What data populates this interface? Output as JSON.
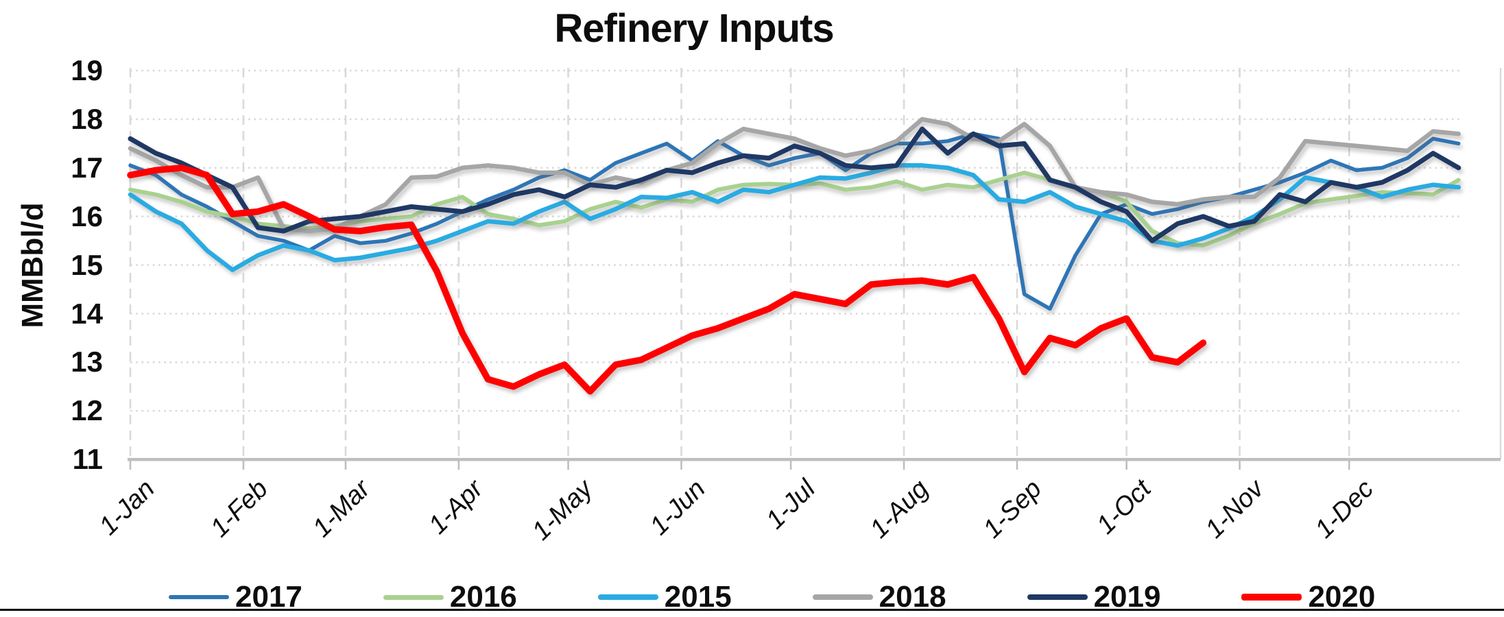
{
  "title": "Refinery Inputs",
  "y_axis": {
    "label": "MMBbl/d",
    "ticks": [
      19,
      18,
      17,
      16,
      15,
      14,
      13,
      12,
      11
    ]
  },
  "x_axis": {
    "month_labels": [
      "1-Jan",
      "1-Feb",
      "1-Mar",
      "1-Apr",
      "1-May",
      "1-Jun",
      "1-Jul",
      "1-Aug",
      "1-Sep",
      "1-Oct",
      "1-Nov",
      "1-Dec"
    ]
  },
  "colors": {
    "grid": "#d9d9d9",
    "axis": "#bfbfbf",
    "text": "#0d0d0d",
    "s2017": "#2e75b6",
    "s2016": "#a9d18e",
    "s2015": "#29abe2",
    "s2018": "#a6a6a6",
    "s2019": "#1f3864",
    "s2020": "#ff0000"
  },
  "chart_data": {
    "type": "line",
    "title": "Refinery Inputs",
    "xlabel": "",
    "ylabel": "MMBbl/d",
    "ylim": [
      11,
      19
    ],
    "grid": "horizontal dotted + vertical dashed",
    "legend_position": "bottom",
    "x": [
      "Jan 1",
      "Jan 8",
      "Jan 15",
      "Jan 22",
      "Jan 29",
      "Feb 5",
      "Feb 12",
      "Feb 19",
      "Feb 26",
      "Mar 5",
      "Mar 12",
      "Mar 19",
      "Mar 26",
      "Apr 2",
      "Apr 9",
      "Apr 16",
      "Apr 23",
      "Apr 30",
      "May 7",
      "May 14",
      "May 21",
      "May 28",
      "Jun 4",
      "Jun 11",
      "Jun 18",
      "Jun 25",
      "Jul 2",
      "Jul 9",
      "Jul 16",
      "Jul 23",
      "Jul 30",
      "Aug 6",
      "Aug 13",
      "Aug 20",
      "Aug 27",
      "Sep 3",
      "Sep 10",
      "Sep 17",
      "Sep 24",
      "Oct 1",
      "Oct 8",
      "Oct 15",
      "Oct 22",
      "Oct 29",
      "Nov 5",
      "Nov 12",
      "Nov 19",
      "Nov 26",
      "Dec 3",
      "Dec 10",
      "Dec 17",
      "Dec 24",
      "Dec 31"
    ],
    "series": [
      {
        "name": "2017",
        "color": "#2e75b6",
        "width": 5.5,
        "values": [
          17.05,
          16.85,
          16.45,
          16.2,
          15.9,
          15.6,
          15.5,
          15.3,
          15.6,
          15.45,
          15.5,
          15.65,
          15.85,
          16.1,
          16.35,
          16.55,
          16.8,
          16.95,
          16.75,
          17.1,
          17.3,
          17.5,
          17.15,
          17.55,
          17.25,
          17.05,
          17.2,
          17.3,
          16.95,
          17.3,
          17.5,
          17.5,
          17.55,
          17.7,
          17.6,
          14.4,
          14.1,
          15.2,
          16.05,
          16.25,
          16.05,
          16.15,
          16.3,
          16.4,
          16.55,
          16.7,
          16.9,
          17.15,
          16.95,
          17.0,
          17.2,
          17.6,
          17.5
        ]
      },
      {
        "name": "2016",
        "color": "#a9d18e",
        "width": 6,
        "values": [
          16.55,
          16.45,
          16.3,
          16.1,
          16.0,
          15.85,
          15.8,
          15.75,
          15.8,
          15.9,
          15.95,
          16.0,
          16.25,
          16.4,
          16.05,
          15.95,
          15.82,
          15.9,
          16.15,
          16.3,
          16.18,
          16.35,
          16.3,
          16.55,
          16.65,
          16.67,
          16.65,
          16.68,
          16.55,
          16.6,
          16.72,
          16.55,
          16.65,
          16.6,
          16.75,
          16.9,
          16.75,
          16.6,
          16.5,
          16.3,
          15.7,
          15.45,
          15.4,
          15.6,
          15.85,
          16.05,
          16.27,
          16.35,
          16.42,
          16.5,
          16.48,
          16.45,
          16.75
        ]
      },
      {
        "name": "2015",
        "color": "#29abe2",
        "width": 6.5,
        "values": [
          16.45,
          16.1,
          15.85,
          15.3,
          14.9,
          15.2,
          15.4,
          15.3,
          15.1,
          15.15,
          15.25,
          15.35,
          15.5,
          15.7,
          15.9,
          15.85,
          16.1,
          16.3,
          15.95,
          16.15,
          16.4,
          16.38,
          16.5,
          16.3,
          16.55,
          16.5,
          16.65,
          16.8,
          16.78,
          16.9,
          17.05,
          17.05,
          17.0,
          16.85,
          16.35,
          16.3,
          16.5,
          16.2,
          16.05,
          15.9,
          15.5,
          15.4,
          15.55,
          15.75,
          16.0,
          16.35,
          16.8,
          16.7,
          16.6,
          16.4,
          16.55,
          16.65,
          16.6
        ]
      },
      {
        "name": "2018",
        "color": "#a6a6a6",
        "width": 6.5,
        "values": [
          17.4,
          17.15,
          16.85,
          16.6,
          16.6,
          16.8,
          15.75,
          15.7,
          15.75,
          16.0,
          16.25,
          16.8,
          16.82,
          17.0,
          17.05,
          17.0,
          16.9,
          16.9,
          16.65,
          16.8,
          16.7,
          16.95,
          17.1,
          17.5,
          17.8,
          17.7,
          17.6,
          17.4,
          17.25,
          17.35,
          17.55,
          18.0,
          17.9,
          17.6,
          17.55,
          17.9,
          17.45,
          16.6,
          16.5,
          16.45,
          16.3,
          16.25,
          16.35,
          16.4,
          16.4,
          16.8,
          17.55,
          17.5,
          17.45,
          17.4,
          17.35,
          17.75,
          17.7
        ]
      },
      {
        "name": "2019",
        "color": "#1f3864",
        "width": 7,
        "values": [
          17.6,
          17.3,
          17.1,
          16.85,
          16.6,
          15.77,
          15.7,
          15.9,
          15.95,
          16.0,
          16.1,
          16.2,
          16.15,
          16.1,
          16.25,
          16.45,
          16.55,
          16.4,
          16.65,
          16.6,
          16.75,
          16.95,
          16.9,
          17.1,
          17.25,
          17.2,
          17.45,
          17.3,
          17.05,
          17.0,
          17.05,
          17.8,
          17.3,
          17.7,
          17.45,
          17.5,
          16.75,
          16.6,
          16.3,
          16.1,
          15.5,
          15.85,
          16.0,
          15.8,
          15.9,
          16.45,
          16.3,
          16.7,
          16.6,
          16.7,
          16.95,
          17.3,
          17.0
        ]
      },
      {
        "name": "2020",
        "color": "#ff0000",
        "width": 9.5,
        "values": [
          16.85,
          16.95,
          17.0,
          16.85,
          16.05,
          16.1,
          16.25,
          16.0,
          15.73,
          15.7,
          15.78,
          15.83,
          14.87,
          13.6,
          12.65,
          12.5,
          12.75,
          12.95,
          12.4,
          12.95,
          13.05,
          13.3,
          13.55,
          13.7,
          13.9,
          14.1,
          14.4,
          14.3,
          14.2,
          14.6,
          14.65,
          14.68,
          14.6,
          14.75,
          13.9,
          12.8,
          13.5,
          13.35,
          13.7,
          13.9,
          13.1,
          13.0,
          13.4,
          null,
          null,
          null,
          null,
          null,
          null,
          null,
          null,
          null,
          null
        ]
      }
    ],
    "legend_order": [
      "2017",
      "2016",
      "2015",
      "2018",
      "2019",
      "2020"
    ]
  }
}
